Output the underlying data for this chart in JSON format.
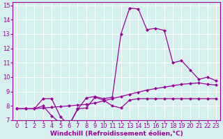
{
  "x": [
    0,
    1,
    2,
    3,
    4,
    5,
    6,
    7,
    8,
    9,
    10,
    11,
    12,
    13,
    14,
    15,
    16,
    17,
    18,
    19,
    20,
    21,
    22,
    23
  ],
  "line1": [
    7.8,
    7.8,
    7.8,
    8.0,
    7.3,
    6.8,
    6.65,
    7.8,
    7.85,
    8.6,
    8.4,
    8.0,
    7.85,
    8.4,
    8.5,
    8.5,
    8.5,
    8.5,
    8.5,
    8.5,
    8.5,
    8.5,
    8.5,
    8.5
  ],
  "line2": [
    7.8,
    7.8,
    7.8,
    8.5,
    8.5,
    7.25,
    6.65,
    7.75,
    8.55,
    8.65,
    8.5,
    8.6,
    13.0,
    14.8,
    14.75,
    13.3,
    13.4,
    13.25,
    11.0,
    11.15,
    10.5,
    9.85,
    10.0,
    9.75
  ],
  "line3": [
    7.8,
    7.8,
    7.8,
    7.85,
    7.9,
    7.95,
    8.0,
    8.05,
    8.1,
    8.2,
    8.35,
    8.5,
    8.65,
    8.8,
    8.95,
    9.1,
    9.2,
    9.3,
    9.4,
    9.5,
    9.55,
    9.6,
    9.5,
    9.45
  ],
  "color": "#990099",
  "bg_color": "#d6f0f0",
  "grid_color": "#ffffff",
  "xlabel": "Windchill (Refroidissement éolien,°C)",
  "xlim_min": -0.5,
  "xlim_max": 23.5,
  "ylim_min": 7,
  "ylim_max": 15.2,
  "yticks": [
    7,
    8,
    9,
    10,
    11,
    12,
    13,
    14,
    15
  ],
  "xticks": [
    0,
    1,
    2,
    3,
    4,
    5,
    6,
    7,
    8,
    9,
    10,
    11,
    12,
    13,
    14,
    15,
    16,
    17,
    18,
    19,
    20,
    21,
    22,
    23
  ],
  "xlabel_fontsize": 6.5,
  "tick_fontsize": 6.0,
  "linewidth": 0.9,
  "marker": "D",
  "markersize": 2.0
}
